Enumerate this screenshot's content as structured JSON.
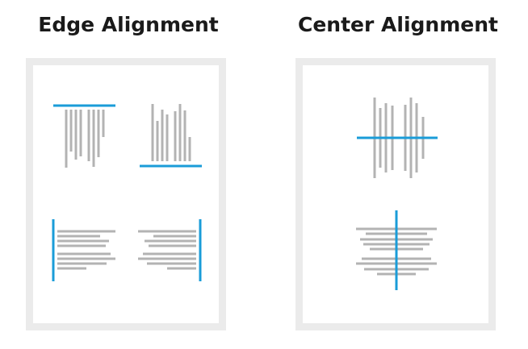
{
  "edge": {
    "title": "Edge Alignment",
    "examples": [
      {
        "name": "top-aligned-bars",
        "alignment": "top"
      },
      {
        "name": "bottom-aligned-bars",
        "alignment": "bottom"
      },
      {
        "name": "left-aligned-lines",
        "alignment": "left"
      },
      {
        "name": "right-aligned-lines",
        "alignment": "right"
      }
    ]
  },
  "center": {
    "title": "Center Alignment",
    "examples": [
      {
        "name": "horizontal-center-bars",
        "alignment": "horizontal-center"
      },
      {
        "name": "vertical-center-lines",
        "alignment": "vertical-center"
      }
    ]
  },
  "colors": {
    "axis": "#1a9cd8",
    "bar": "#b3b3b3",
    "panel_border": "#ebebeb",
    "title": "#1a1a1a"
  }
}
